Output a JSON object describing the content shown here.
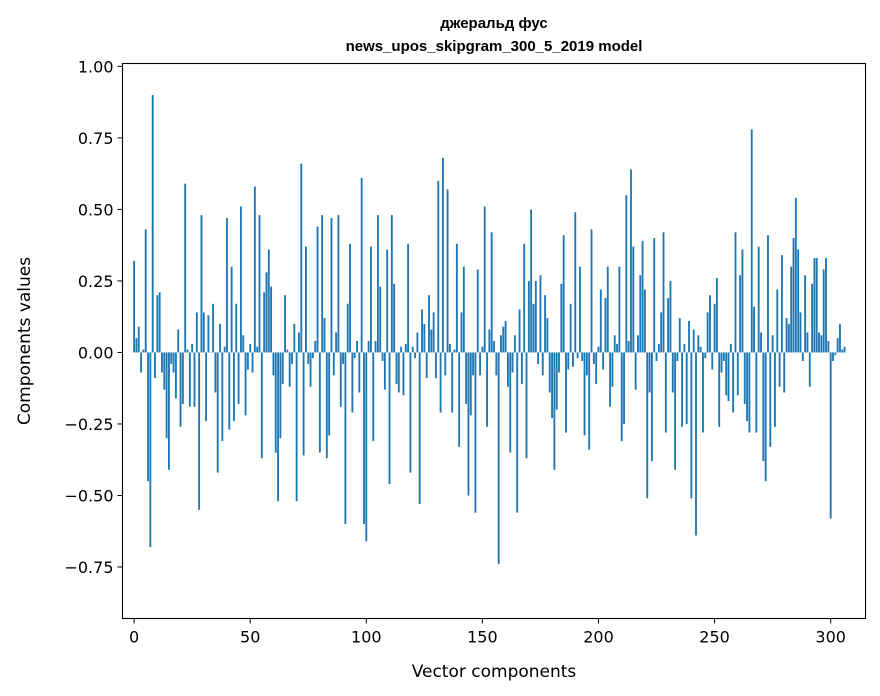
{
  "chart_data": {
    "type": "bar",
    "title": "джеральд фус",
    "subtitle": "news_upos_skipgram_300_5_2019 model",
    "xlabel": "Vector components",
    "ylabel": "Components values",
    "xlim": [
      -5,
      315
    ],
    "ylim": [
      -0.93,
      1.01
    ],
    "xticks": [
      0,
      50,
      100,
      150,
      200,
      250,
      300
    ],
    "xtick_labels": [
      "0",
      "50",
      "100",
      "150",
      "200",
      "250",
      "300"
    ],
    "yticks": [
      -0.75,
      -0.5,
      -0.25,
      0.0,
      0.25,
      0.5,
      0.75,
      1.0
    ],
    "ytick_labels": [
      "−0.75",
      "−0.50",
      "−0.25",
      "0.00",
      "0.25",
      "0.50",
      "0.75",
      "1.00"
    ],
    "grid": false,
    "bar_color": "#1f77b4",
    "values": [
      0.32,
      0.05,
      0.09,
      -0.07,
      0.01,
      0.43,
      -0.45,
      -0.68,
      0.9,
      -0.09,
      0.2,
      0.21,
      -0.07,
      -0.13,
      -0.3,
      -0.41,
      -0.04,
      -0.07,
      -0.16,
      0.08,
      -0.26,
      -0.18,
      0.59,
      0.01,
      -0.19,
      0.03,
      -0.19,
      0.14,
      -0.55,
      0.48,
      0.14,
      -0.24,
      0.13,
      0.0,
      0.17,
      -0.14,
      -0.42,
      0.1,
      -0.31,
      0.02,
      0.47,
      -0.27,
      0.3,
      -0.24,
      0.17,
      -0.18,
      0.51,
      0.06,
      -0.22,
      -0.06,
      0.03,
      -0.07,
      0.58,
      0.02,
      0.48,
      -0.37,
      0.21,
      0.28,
      0.36,
      0.23,
      -0.08,
      -0.35,
      -0.52,
      -0.3,
      -0.11,
      0.2,
      0.01,
      -0.12,
      -0.04,
      0.1,
      -0.52,
      0.07,
      0.66,
      -0.36,
      0.37,
      -0.04,
      -0.12,
      -0.02,
      0.04,
      0.44,
      -0.35,
      0.48,
      0.12,
      -0.37,
      -0.29,
      0.47,
      -0.08,
      0.07,
      0.48,
      -0.19,
      -0.04,
      -0.6,
      0.17,
      0.38,
      -0.21,
      -0.02,
      0.04,
      -0.14,
      0.61,
      -0.6,
      -0.66,
      0.04,
      0.37,
      -0.31,
      0.04,
      0.48,
      0.23,
      -0.03,
      -0.13,
      0.36,
      -0.46,
      0.48,
      0.24,
      -0.11,
      -0.14,
      0.02,
      -0.15,
      0.03,
      0.38,
      -0.42,
      0.02,
      -0.02,
      0.07,
      -0.53,
      0.15,
      0.1,
      -0.09,
      0.2,
      0.08,
      0.14,
      -0.09,
      0.6,
      -0.21,
      0.68,
      -0.08,
      0.57,
      0.03,
      -0.21,
      0.01,
      0.38,
      -0.33,
      0.14,
      0.3,
      -0.18,
      -0.5,
      -0.22,
      -0.08,
      -0.56,
      0.29,
      -0.08,
      0.02,
      0.51,
      -0.26,
      0.08,
      0.42,
      0.04,
      -0.08,
      -0.74,
      0.06,
      0.09,
      0.11,
      -0.12,
      -0.35,
      -0.07,
      0.06,
      -0.56,
      0.15,
      -0.11,
      0.38,
      -0.37,
      0.25,
      0.5,
      0.17,
      0.25,
      -0.04,
      0.27,
      -0.08,
      0.2,
      0.12,
      -0.14,
      -0.23,
      -0.41,
      -0.2,
      -0.07,
      0.24,
      0.41,
      -0.28,
      -0.06,
      0.17,
      -0.05,
      0.49,
      -0.02,
      0.3,
      -0.03,
      -0.29,
      -0.08,
      -0.34,
      0.43,
      -0.04,
      -0.11,
      0.02,
      0.22,
      -0.06,
      0.19,
      0.3,
      -0.19,
      -0.12,
      0.06,
      0.03,
      0.3,
      -0.31,
      -0.25,
      0.55,
      0.04,
      0.64,
      0.37,
      -0.13,
      0.06,
      0.27,
      0.39,
      0.22,
      -0.51,
      -0.14,
      -0.38,
      0.4,
      -0.03,
      0.03,
      0.14,
      0.42,
      -0.28,
      0.19,
      0.25,
      -0.14,
      -0.41,
      -0.03,
      0.12,
      -0.26,
      0.03,
      -0.25,
      0.11,
      -0.51,
      0.08,
      -0.64,
      0.06,
      0.02,
      -0.28,
      -0.02,
      0.14,
      0.2,
      -0.06,
      0.17,
      0.26,
      -0.26,
      -0.07,
      -0.03,
      -0.15,
      -0.17,
      0.03,
      -0.21,
      0.42,
      -0.15,
      0.27,
      0.36,
      -0.18,
      -0.24,
      -0.28,
      0.78,
      0.16,
      -0.28,
      0.37,
      0.07,
      -0.38,
      -0.45,
      0.41,
      -0.33,
      0.06,
      -0.26,
      0.22,
      -0.12,
      0.34,
      -0.14,
      0.12,
      0.1,
      0.3,
      0.4,
      0.54,
      0.36,
      0.14,
      -0.03,
      0.27,
      0.07,
      -0.12,
      0.24,
      0.33,
      0.33,
      0.07,
      0.06,
      0.29,
      0.33,
      0.04,
      -0.58,
      -0.03,
      -0.01,
      0.05,
      0.1,
      0.01,
      0.02
    ]
  }
}
